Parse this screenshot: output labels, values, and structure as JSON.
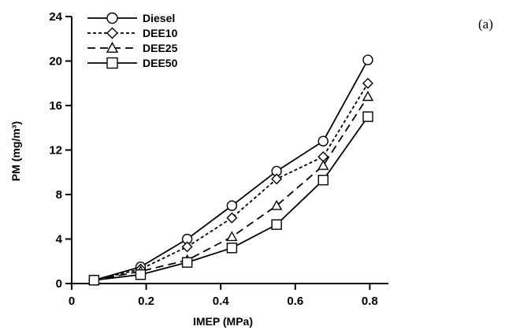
{
  "panel_label": "(a)",
  "chart_data": {
    "type": "line",
    "title": "",
    "xlabel": "IMEP (MPa)",
    "ylabel": "PM (mg/m³)",
    "xlim": [
      0,
      0.85
    ],
    "ylim": [
      0,
      24
    ],
    "xticks": [
      0,
      0.2,
      0.4,
      0.6,
      0.8
    ],
    "xtick_labels": [
      "0",
      "0.2",
      "0.4",
      "0.6",
      "0.8"
    ],
    "yticks": [
      0,
      4,
      8,
      12,
      16,
      20,
      24
    ],
    "ytick_labels": [
      "0",
      "4",
      "8",
      "12",
      "16",
      "20",
      "24"
    ],
    "legend_position": "top-left",
    "x": [
      0.06,
      0.185,
      0.31,
      0.43,
      0.55,
      0.675,
      0.795
    ],
    "series": [
      {
        "name": "Diesel",
        "marker": "circle",
        "dash": "solid",
        "values": [
          0.3,
          1.5,
          4.0,
          7.0,
          10.1,
          12.8,
          20.1
        ]
      },
      {
        "name": "DEE10",
        "marker": "diamond",
        "dash": "short",
        "values": [
          0.3,
          1.3,
          3.3,
          5.9,
          9.4,
          11.4,
          18.0
        ]
      },
      {
        "name": "DEE25",
        "marker": "triangle",
        "dash": "long",
        "values": [
          0.3,
          1.1,
          2.1,
          4.2,
          7.0,
          10.6,
          16.8
        ]
      },
      {
        "name": "DEE50",
        "marker": "square",
        "dash": "solid",
        "values": [
          0.3,
          0.8,
          1.9,
          3.2,
          5.3,
          9.3,
          15.0
        ]
      }
    ]
  }
}
